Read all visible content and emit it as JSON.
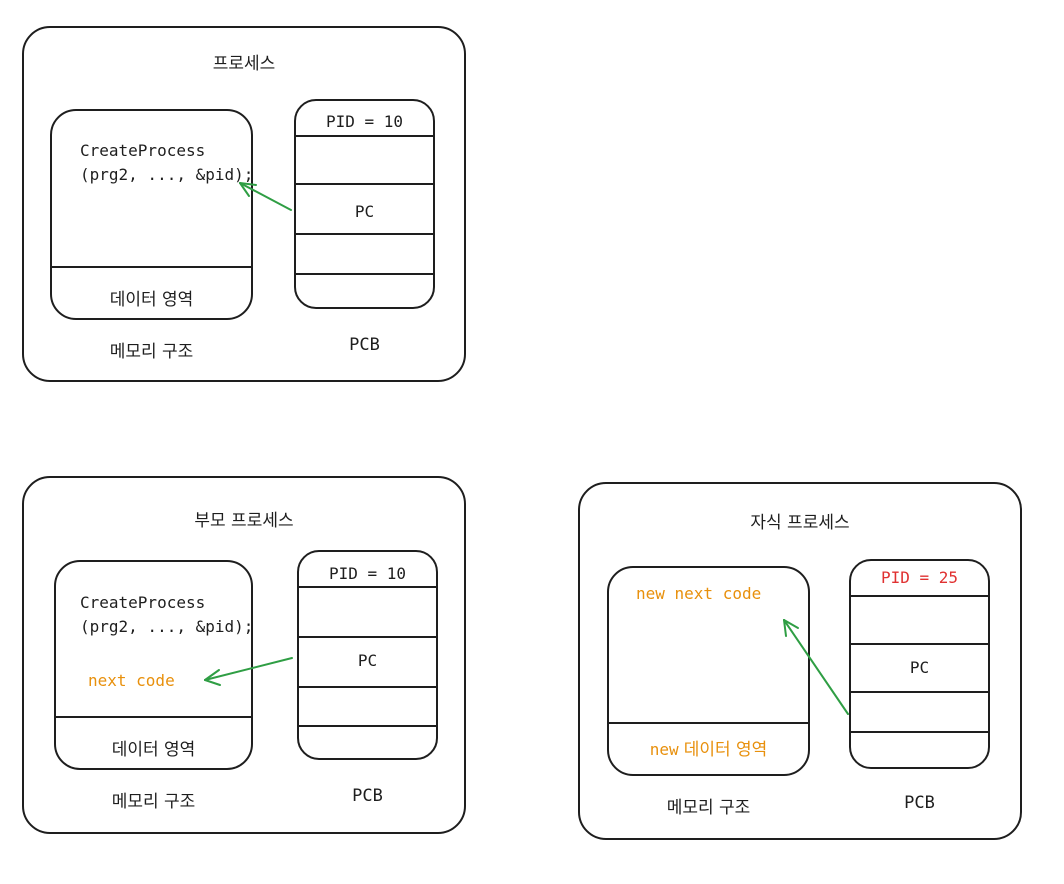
{
  "colors": {
    "stroke": "#1e1e1e",
    "arrow": "#2f9e44",
    "orange": "#e8900c",
    "red": "#e03131"
  },
  "process": {
    "title": "프로세스",
    "code_line1": "CreateProcess",
    "code_line2": "(prg2, ..., &pid);",
    "data_area": "데이터 영역",
    "memory_label": "메모리 구조",
    "pcb_pid": "PID = 10",
    "pcb_pc": "PC",
    "pcb_label": "PCB"
  },
  "parent": {
    "title": "부모 프로세스",
    "code_line1": "CreateProcess",
    "code_line2": "(prg2, ..., &pid);",
    "next_code": "next code",
    "data_area": "데이터 영역",
    "memory_label": "메모리 구조",
    "pcb_pid": "PID = 10",
    "pcb_pc": "PC",
    "pcb_label": "PCB"
  },
  "child": {
    "title": "자식 프로세스",
    "new_next_code": "new next code",
    "new_prefix": "new",
    "data_area": "데이터 영역",
    "memory_label": "메모리 구조",
    "pcb_pid": "PID = 25",
    "pcb_pc": "PC",
    "pcb_label": "PCB"
  }
}
